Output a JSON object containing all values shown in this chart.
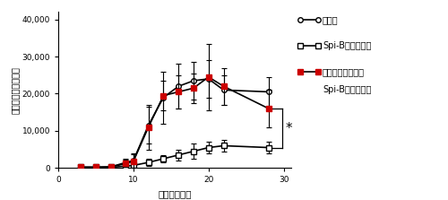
{
  "title": "",
  "xlabel": "感染後の日数",
  "ylabel": "線虫感染（虫卵数）",
  "xlim": [
    0,
    31
  ],
  "ylim": [
    0,
    42000
  ],
  "yticks": [
    0,
    10000,
    20000,
    30000,
    40000
  ],
  "ytick_labels": [
    "0",
    "10,000",
    "20,000",
    "30,000",
    "40,000"
  ],
  "xticks": [
    0,
    10,
    20,
    30
  ],
  "wt_x": [
    3,
    5,
    7,
    9,
    10,
    12,
    14,
    16,
    18,
    20,
    22,
    28
  ],
  "wt_y": [
    200,
    200,
    300,
    1500,
    2000,
    11500,
    19000,
    22000,
    23500,
    24000,
    21000,
    20500
  ],
  "wt_err": [
    100,
    100,
    100,
    1000,
    2000,
    5000,
    7000,
    6000,
    5000,
    5000,
    4000,
    4000
  ],
  "spib_x": [
    3,
    5,
    7,
    9,
    10,
    12,
    14,
    16,
    18,
    20,
    22,
    28
  ],
  "spib_y": [
    200,
    200,
    200,
    500,
    700,
    1500,
    2500,
    3500,
    4500,
    5500,
    6000,
    5500
  ],
  "spib_err": [
    100,
    100,
    100,
    500,
    500,
    1000,
    1000,
    1500,
    2000,
    1500,
    1500,
    1500
  ],
  "mast_x": [
    3,
    5,
    7,
    9,
    10,
    12,
    14,
    16,
    18,
    20,
    22,
    28
  ],
  "mast_y": [
    200,
    200,
    300,
    1200,
    1800,
    11000,
    19500,
    20500,
    21500,
    24500,
    22000,
    16000
  ],
  "mast_err": [
    100,
    100,
    100,
    1000,
    2000,
    6000,
    4000,
    4500,
    4000,
    9000,
    5000,
    5000
  ],
  "legend_wt": "野生型",
  "legend_spib": "Spi-B欠損マウス",
  "legend_mast_line1": "肥満細胞除去した",
  "legend_mast_line2": "Spi-B欠損マウス",
  "color_wt": "#000000",
  "color_spib": "#000000",
  "color_mast": "#cc0000",
  "bg_color": "#ffffff"
}
